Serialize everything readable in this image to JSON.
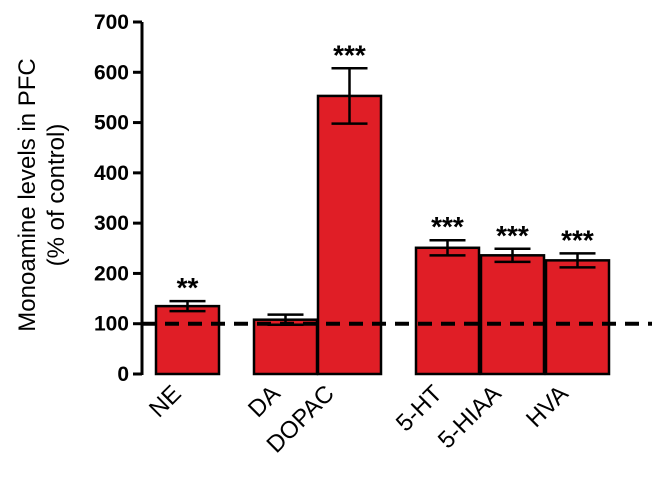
{
  "chart_data": {
    "type": "bar",
    "categories": [
      "NE",
      "DA",
      "DOPAC",
      "5-HT",
      "5-HIAA",
      "HVA"
    ],
    "values": [
      135,
      108,
      553,
      251,
      236,
      226
    ],
    "errors": [
      10,
      10,
      55,
      15,
      13,
      14
    ],
    "significance": [
      "**",
      "",
      "***",
      "***",
      "***",
      "***"
    ],
    "ylabel_line1": "Monoamine levels in PFC",
    "ylabel_line2": "(% of control)",
    "ylim": [
      0,
      700
    ],
    "yticks": [
      "0",
      "100",
      "200",
      "300",
      "400",
      "500",
      "600",
      "700"
    ],
    "reference_line": 100,
    "bar_color": "#e01e26",
    "grid": false
  }
}
